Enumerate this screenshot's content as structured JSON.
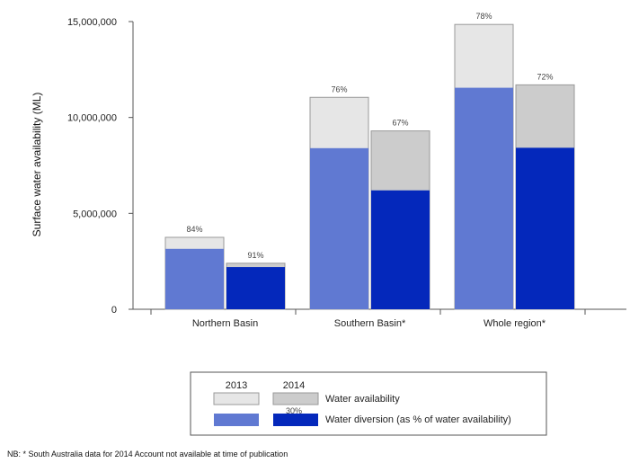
{
  "chart_data": {
    "type": "bar",
    "subtype": "overlapped-stacked",
    "ylabel": "Surface water availability (ML)",
    "ylim": [
      0,
      15000000
    ],
    "yticks": [
      0,
      5000000,
      10000000,
      15000000
    ],
    "ytick_labels": [
      "0",
      "5,000,000",
      "10,000,000",
      "15,000,000"
    ],
    "categories": [
      "Northern Basin",
      "Southern Basin*",
      "Whole region*"
    ],
    "series": [
      {
        "name": "2013",
        "availability": [
          3750000,
          11050000,
          14850000
        ],
        "diversion": [
          3150000,
          8400000,
          11550000
        ],
        "labels": [
          "84%",
          "76%",
          "78%"
        ]
      },
      {
        "name": "2014",
        "availability": [
          2400000,
          9300000,
          11700000
        ],
        "diversion": [
          2200000,
          6200000,
          8420000
        ],
        "labels": [
          "91%",
          "67%",
          "72%"
        ]
      }
    ],
    "colors": {
      "avail_2013": "#e6e6e6",
      "avail_2014": "#cccccc",
      "div_2013": "#6079d2",
      "div_2014": "#0428bb",
      "bar_stroke": "#999999",
      "axis": "#555555"
    },
    "legend": {
      "years": [
        "2013",
        "2014"
      ],
      "rows": [
        "Water availability",
        "Water diversion (as % of water availability)"
      ],
      "example_label": "30%"
    }
  },
  "note": "NB: * South Australia data for 2014 Account not available at time of publication"
}
